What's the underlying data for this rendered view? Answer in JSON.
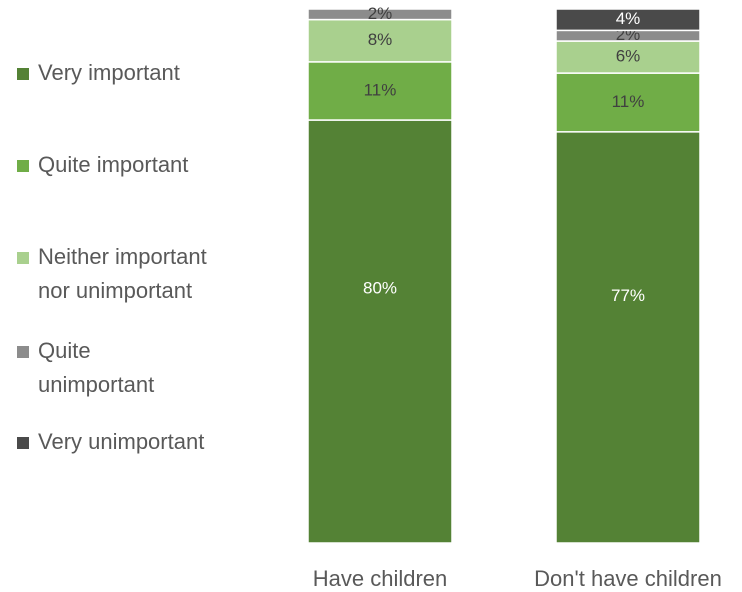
{
  "chart_data": {
    "type": "bar",
    "stacked": true,
    "normalized": true,
    "categories": [
      "Have children",
      "Don't have children"
    ],
    "series": [
      {
        "name": "Very important",
        "values": [
          80,
          77
        ],
        "labels": [
          "80%",
          "77%"
        ],
        "color": "#548235",
        "label_color": "#ffffff"
      },
      {
        "name": "Quite important",
        "values": [
          11,
          11
        ],
        "labels": [
          "11%",
          "11%"
        ],
        "color": "#70ad47",
        "label_color": "#404040"
      },
      {
        "name": "Neither important nor unimportant",
        "legend_lines": [
          "Neither important",
          "nor unimportant"
        ],
        "values": [
          8,
          6
        ],
        "labels": [
          "8%",
          "6%"
        ],
        "color": "#a9d08e",
        "label_color": "#404040"
      },
      {
        "name": "Quite unimportant",
        "legend_lines": [
          "Quite",
          "unimportant"
        ],
        "values": [
          2,
          2
        ],
        "labels": [
          "2%",
          "2%"
        ],
        "color": "#8c8c8c",
        "label_color": "#404040"
      },
      {
        "name": "Very unimportant",
        "values": [
          0,
          4
        ],
        "labels": [
          "",
          "4%"
        ],
        "color": "#4a4a4a",
        "label_color": "#ffffff"
      }
    ],
    "legend_position": "left",
    "grid": false
  }
}
